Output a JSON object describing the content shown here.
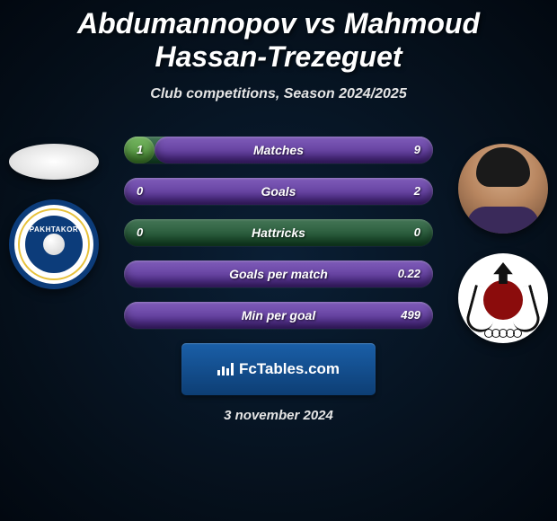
{
  "header": {
    "title": "Abdumannopov vs Mahmoud Hassan-Trezeguet",
    "subtitle": "Club competitions, Season 2024/2025"
  },
  "colors": {
    "bar_bg": "#2d5f3f",
    "player1_fill": "#5fa04b",
    "player2_fill": "#6845a3"
  },
  "players": {
    "left": {
      "name": "Abdumannopov",
      "club": "Pakhtakor"
    },
    "right": {
      "name": "Mahmoud Hassan-Trezeguet",
      "club": "Al Rayyan"
    }
  },
  "stats": [
    {
      "label": "Matches",
      "left_val": "1",
      "right_val": "9",
      "left_pct": 10,
      "right_pct": 90
    },
    {
      "label": "Goals",
      "left_val": "0",
      "right_val": "2",
      "left_pct": 0,
      "right_pct": 100
    },
    {
      "label": "Hattricks",
      "left_val": "0",
      "right_val": "0",
      "left_pct": 0,
      "right_pct": 0
    },
    {
      "label": "Goals per match",
      "left_val": "",
      "right_val": "0.22",
      "left_pct": 0,
      "right_pct": 100
    },
    {
      "label": "Min per goal",
      "left_val": "",
      "right_val": "499",
      "left_pct": 0,
      "right_pct": 100
    }
  ],
  "footer": {
    "watermark": "FcTables.com",
    "date": "3 november 2024"
  }
}
